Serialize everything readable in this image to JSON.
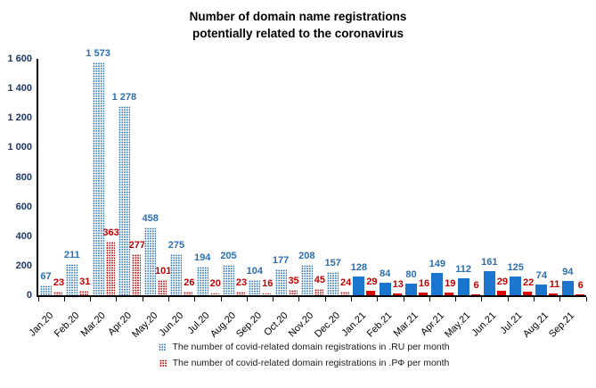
{
  "title": {
    "line1": "Number of domain name registrations",
    "line2": "potentially related to the coronavirus"
  },
  "chart_data": {
    "type": "bar",
    "title": "Number of domain name registrations potentially related to the coronavirus",
    "title_lines": [
      "Number of domain name registrations",
      "potentially related to the coronavirus"
    ],
    "categories": [
      "Jan.20",
      "Feb.20",
      "Mar.20",
      "Apr.20",
      "May.20",
      "Jun.20",
      "Jul.20",
      "Aug.20",
      "Sep.20",
      "Oct.20",
      "Nov.20",
      "Dec.20",
      "Jan.21",
      "Feb.21",
      "Mar.21",
      "Apr.21",
      "May.21",
      "Jun.21",
      "Jul.21",
      "Aug.21",
      "Sep.21"
    ],
    "series": [
      {
        "name": "The number of covid-related domain registrations in .RU per month",
        "values": [
          67,
          211,
          1573,
          1278,
          458,
          275,
          194,
          205,
          104,
          177,
          208,
          157,
          128,
          84,
          80,
          149,
          112,
          161,
          125,
          74,
          94
        ],
        "pattern_color": "#2E75B6",
        "solid_color": "#1B74CE",
        "label_color": "#2D6EAF"
      },
      {
        "name": "The number of covid-related domain registrations in .РФ per month",
        "values": [
          23,
          31,
          363,
          277,
          101,
          26,
          20,
          23,
          16,
          35,
          45,
          24,
          29,
          13,
          16,
          19,
          6,
          29,
          22,
          11,
          6
        ],
        "pattern_color": "#C00000",
        "solid_color": "#D90000",
        "label_color": "#C00000"
      }
    ],
    "bar_style": {
      "dotted_until_index": 11,
      "solid_from_index": 12
    },
    "ylim": [
      0,
      1600
    ],
    "ytick_step": 200,
    "ytick_labels": [
      "0",
      "200",
      "400",
      "600",
      "800",
      "1000",
      "1200",
      "1400",
      "1600"
    ],
    "ytick_label_color": "#1F3864",
    "axis_color": "#000000",
    "grid": false,
    "legend_position": "bottom"
  }
}
